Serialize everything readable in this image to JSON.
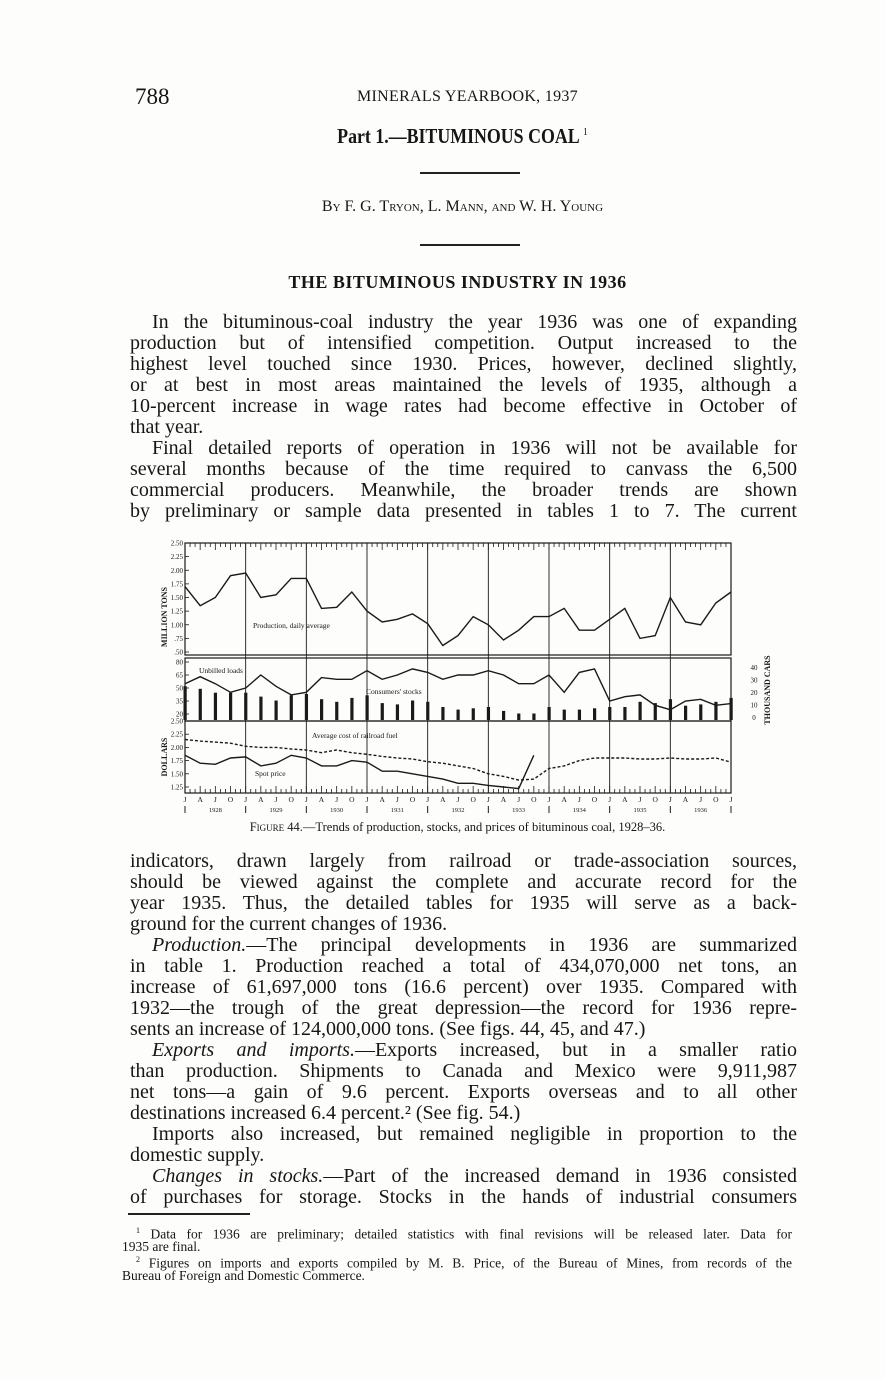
{
  "header": {
    "page_number": "788",
    "running_title": "MINERALS YEARBOOK, 1937",
    "part_title": "Part 1.—BITUMINOUS COAL",
    "part_footnote_ref": "1",
    "byline": "By F. G. Tryon, L. Mann, and W. H. Young",
    "section_heading": "THE BITUMINOUS INDUSTRY IN 1936"
  },
  "body_top": [
    {
      "head": "",
      "lines": [
        "In the bituminous-coal industry the year 1936 was one of expanding",
        "production but of intensified competition. Output increased to the",
        "highest level touched since 1930. Prices, however, declined slightly,",
        "or at best in most areas maintained the levels of 1935, although a",
        "10-percent increase in wage rates had become effective in October of",
        "that year."
      ]
    },
    {
      "head": "",
      "lines": [
        "Final detailed reports of operation in 1936 will not be available for",
        "several months because of the time required to canvass the 6,500",
        "commercial producers. Meanwhile, the broader trends are shown",
        "by preliminary or sample data presented in tables 1 to 7. The current"
      ]
    }
  ],
  "figure": {
    "caption_label": "Figure 44.",
    "caption_text": "—Trends of production, stocks, and prices of bituminous coal, 1928–36."
  },
  "body_bottom": [
    {
      "head": "",
      "continued": true,
      "lines": [
        "indicators, drawn largely from railroad or trade-association sources,",
        "should be viewed against the complete and accurate record for the",
        "year 1935. Thus, the detailed tables for 1935 will serve as a back-",
        "ground for the current changes of 1936."
      ]
    },
    {
      "head": "Production.",
      "lines": [
        "—The principal developments in 1936 are summarized",
        "in table 1. Production reached a total of 434,070,000 net tons, an",
        "increase of 61,697,000 tons (16.6 percent) over 1935. Compared with",
        "1932—the trough of the great depression—the record for 1936 repre-",
        "sents an increase of 124,000,000 tons. (See figs. 44, 45, and 47.)"
      ]
    },
    {
      "head": "Exports and imports.",
      "lines": [
        "—Exports increased, but in a smaller ratio",
        "than production. Shipments to Canada and Mexico were 9,911,987",
        "net tons—a gain of 9.6 percent. Exports overseas and to all other",
        "destinations increased 6.4 percent.² (See fig. 54.)"
      ]
    },
    {
      "head": "",
      "lines": [
        "Imports also increased, but remained negligible in proportion to the",
        "domestic supply."
      ]
    },
    {
      "head": "Changes in stocks.",
      "continues": true,
      "lines": [
        "—Part of the increased demand in 1936 consisted",
        "of purchases for storage. Stocks in the hands of industrial consumers"
      ]
    }
  ],
  "footnotes": [
    {
      "ref": "1",
      "lines": [
        "Data for 1936 are preliminary; detailed statistics with final revisions will be released later. Data for",
        "1935 are final."
      ]
    },
    {
      "ref": "2",
      "lines": [
        "Figures on imports and exports compiled by M. B. Price, of the Bureau of Mines, from records of the",
        "Bureau of Foreign and Domestic Commerce."
      ]
    }
  ],
  "chart_data": {
    "type": "line",
    "title": "",
    "x_start": "Jan 1928",
    "x_end": "Jan 1937",
    "x_interval": "quarter",
    "month_labels": [
      "J",
      "A",
      "J",
      "O"
    ],
    "end_label": "J",
    "year_labels": [
      "1928",
      "1929",
      "1930",
      "1931",
      "1932",
      "1933",
      "1934",
      "1935",
      "1936"
    ],
    "panels": [
      {
        "ylabel": "MILLION TONS",
        "ylim": [
          0.5,
          2.5
        ],
        "yticks": [
          "2.50",
          "2.25",
          "2.00",
          "1.75",
          "1.50",
          "1.25",
          "1.00",
          ".75",
          ".50"
        ],
        "series": [
          {
            "name": "Production, daily average",
            "style": "solid",
            "values": [
              1.7,
              1.35,
              1.5,
              1.9,
              1.95,
              1.5,
              1.55,
              1.85,
              1.85,
              1.3,
              1.32,
              1.6,
              1.25,
              1.05,
              1.1,
              1.2,
              1.02,
              0.62,
              0.8,
              1.15,
              1.0,
              0.72,
              0.9,
              1.15,
              1.15,
              1.3,
              0.9,
              0.9,
              1.1,
              1.3,
              0.75,
              0.8,
              1.5,
              1.05,
              1.0,
              1.4,
              1.6
            ]
          }
        ]
      },
      {
        "ylabel": "",
        "ylim": [
          20,
          80
        ],
        "yticks": [
          "80",
          "65",
          "50",
          "35",
          "20"
        ],
        "right_ylabel": "THOUSAND CARS",
        "right_yticks": [
          "40",
          "30",
          "20",
          "10",
          "0"
        ],
        "right_ylim": [
          0,
          40
        ],
        "series": [
          {
            "name": "Unbilled loads",
            "style": "solid",
            "axis": "left",
            "values": [
              55,
              63,
              55,
              45,
              50,
              65,
              52,
              42,
              45,
              62,
              60,
              60,
              70,
              60,
              65,
              72,
              68,
              60,
              65,
              65,
              70,
              65,
              55,
              55,
              65,
              45,
              68,
              72,
              35,
              40,
              42,
              30,
              25,
              35,
              37,
              30,
              32
            ]
          },
          {
            "name": "Consumers' stocks",
            "style": "bar",
            "axis": "right",
            "values": [
              26,
              24,
              21,
              21,
              21,
              18,
              15,
              19,
              20,
              16,
              14,
              17,
              19,
              13,
              12,
              15,
              14,
              10,
              8,
              9,
              10,
              7,
              5,
              5,
              10,
              8,
              8,
              9,
              10,
              10,
              14,
              13,
              16,
              11,
              12,
              14,
              17
            ]
          }
        ]
      },
      {
        "ylabel": "DOLLARS",
        "ylim": [
          1.25,
          2.5
        ],
        "yticks": [
          "2.50",
          "2.25",
          "2.00",
          "1.75",
          "1.50",
          "1.25"
        ],
        "series": [
          {
            "name": "Average cost of railroad fuel",
            "style": "dashed",
            "values": [
              2.15,
              2.12,
              2.1,
              2.08,
              2.02,
              2.0,
              2.0,
              1.97,
              1.95,
              1.9,
              1.95,
              1.9,
              1.87,
              1.83,
              1.8,
              1.78,
              1.73,
              1.7,
              1.65,
              1.6,
              1.5,
              1.45,
              1.38,
              1.4,
              1.6,
              1.65,
              1.75,
              1.8,
              1.8,
              1.8,
              1.78,
              1.78,
              1.8,
              1.78,
              1.78,
              1.8,
              1.72
            ]
          },
          {
            "name": "Spot price",
            "style": "solid",
            "values": [
              1.85,
              1.7,
              1.68,
              1.8,
              1.82,
              1.65,
              1.7,
              1.85,
              1.8,
              1.65,
              1.65,
              1.75,
              1.72,
              1.55,
              1.55,
              1.5,
              1.45,
              1.4,
              1.32,
              1.32,
              1.28,
              1.25,
              1.22,
              1.85
            ]
          }
        ]
      }
    ]
  }
}
